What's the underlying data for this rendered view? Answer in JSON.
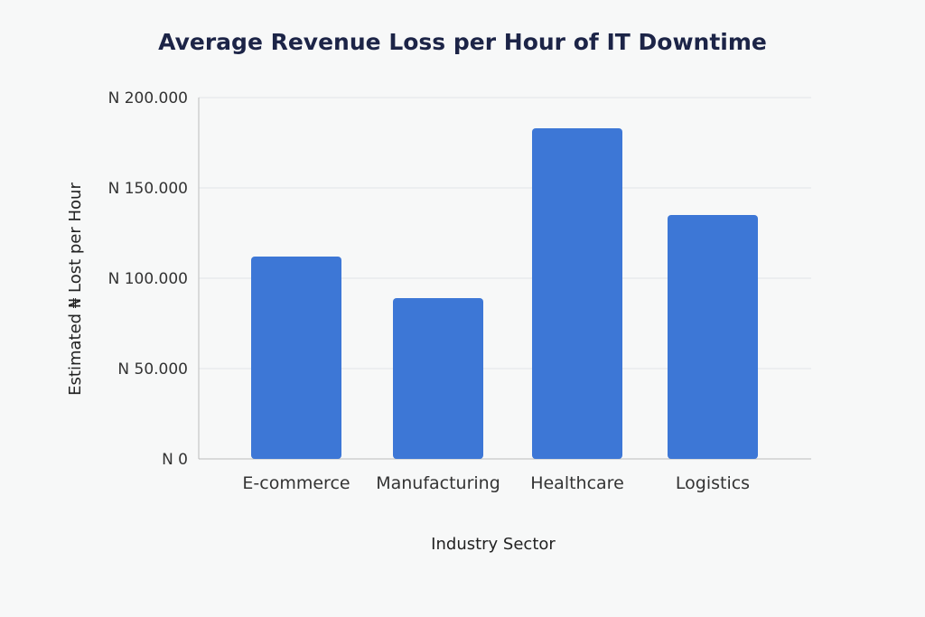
{
  "chart_data": {
    "type": "bar",
    "title": "Average Revenue Loss per Hour of IT Downtime",
    "xlabel": "Industry Sector",
    "ylabel": "Estimated ₦ Lost per Hour",
    "categories": [
      "E-commerce",
      "Manufacturing",
      "Healthcare",
      "Logistics"
    ],
    "values": [
      112000,
      89000,
      183000,
      135000
    ],
    "ylim": [
      0,
      200000
    ],
    "yticks": [
      0,
      50000,
      100000,
      150000,
      200000
    ],
    "ytick_labels": [
      "N 0",
      "N 50.000",
      "N 100.000",
      "N 150.000",
      "N 200.000"
    ],
    "grid": true,
    "bar_color": "#3d77d6"
  }
}
